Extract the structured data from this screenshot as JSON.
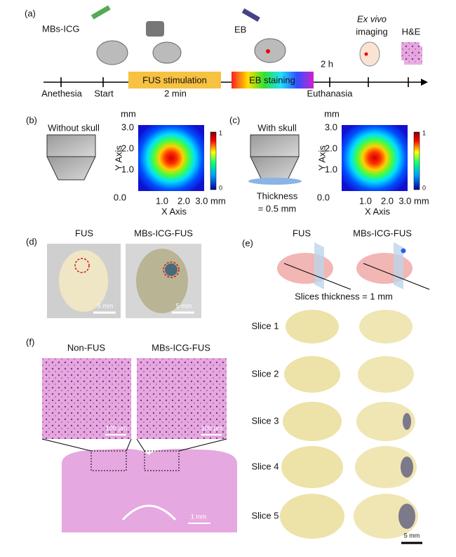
{
  "panel_a": {
    "label": "(a)",
    "agent_1": "MBs-ICG",
    "agent_2": "EB",
    "imaging": [
      "Ex vivo",
      "imaging"
    ],
    "stain": "H&E",
    "delay": "2 h",
    "stage_1": "FUS stimulation",
    "stage_1_duration": "2 min",
    "stage_2": "EB staining",
    "events": [
      "Anethesia",
      "Start",
      "Euthanasia"
    ]
  },
  "panel_b": {
    "label": "(b)",
    "condition": "Without skull",
    "unit": "mm",
    "yticks": [
      "3.0",
      "2.0",
      "1.0",
      "0.0"
    ],
    "xticks": [
      "1.0",
      "2.0",
      "3.0 mm"
    ],
    "ylabel": "Y Axis",
    "xlabel": "X Axis",
    "colorbar": [
      "1",
      "0"
    ]
  },
  "panel_c": {
    "label": "(c)",
    "condition": "With skull",
    "thickness": [
      "Thickness",
      "= 0.5 mm"
    ],
    "unit": "mm",
    "yticks": [
      "3.0",
      "2.0",
      "1.0",
      "0.0"
    ],
    "xticks": [
      "1.0",
      "2.0",
      "3.0 mm"
    ],
    "ylabel": "Y Axis",
    "xlabel": "X Axis",
    "colorbar": [
      "1",
      "0"
    ]
  },
  "panel_d": {
    "label": "(d)",
    "groups": [
      "FUS",
      "MBs-ICG-FUS"
    ],
    "scale_bars": [
      "5 mm",
      "5 mm"
    ]
  },
  "panel_e": {
    "label": "(e)",
    "groups": [
      "FUS",
      "MBs-ICG-FUS"
    ],
    "note": "Slices thickness = 1 mm",
    "slices": [
      "Slice 1",
      "Slice 2",
      "Slice 3",
      "Slice 4",
      "Slice 5"
    ],
    "scale_bar": "5 mm"
  },
  "panel_f": {
    "label": "(f)",
    "groups": [
      "Non-FUS",
      "MBs-ICG-FUS"
    ],
    "scale_bars": [
      "100 μm",
      "100 μm"
    ],
    "overview_scale_bar": "1 mm"
  }
}
